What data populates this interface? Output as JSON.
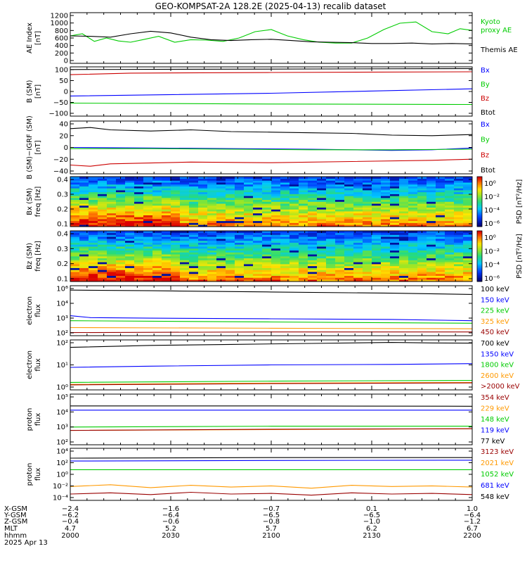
{
  "title": "GEO-KOMPSAT-2A 128.2E (2025-04-13) recalib dataset",
  "colors": {
    "black": "#000000",
    "blue": "#0000ff",
    "green": "#00cc00",
    "red": "#cc0000",
    "orange": "#ff9900",
    "darkred": "#990000",
    "navy": "#0000aa"
  },
  "chart_data": [
    {
      "type": "line",
      "panel": "ae",
      "ylabel": [
        "AE Index",
        "[nT]"
      ],
      "yticks": [
        "1200",
        "1000",
        "800",
        "600",
        "400",
        "200",
        "0"
      ],
      "ylim": [
        0,
        1200
      ],
      "legend": [
        {
          "name": "Kyoto",
          "color": "green"
        },
        {
          "name": "proxy AE",
          "color": "green"
        },
        {
          "name": "Themis AE",
          "color": "black"
        }
      ],
      "series": [
        {
          "name": "Kyoto proxy AE",
          "color": "green",
          "x": [
            0,
            0.03,
            0.06,
            0.09,
            0.12,
            0.15,
            0.18,
            0.22,
            0.26,
            0.3,
            0.34,
            0.38,
            0.42,
            0.46,
            0.5,
            0.54,
            0.58,
            0.62,
            0.66,
            0.7,
            0.74,
            0.78,
            0.82,
            0.86,
            0.9,
            0.94,
            0.97,
            1.0
          ],
          "values": [
            650,
            700,
            520,
            600,
            530,
            500,
            560,
            640,
            500,
            560,
            550,
            520,
            600,
            750,
            800,
            650,
            560,
            500,
            480,
            480,
            600,
            800,
            950,
            980,
            750,
            700,
            820,
            780
          ]
        },
        {
          "name": "Themis AE",
          "color": "black",
          "x": [
            0,
            0.05,
            0.1,
            0.15,
            0.2,
            0.25,
            0.3,
            0.35,
            0.4,
            0.45,
            0.5,
            0.55,
            0.6,
            0.65,
            0.7,
            0.75,
            0.8,
            0.85,
            0.9,
            0.95,
            1.0
          ],
          "values": [
            650,
            640,
            620,
            700,
            760,
            720,
            620,
            560,
            540,
            560,
            570,
            540,
            510,
            500,
            490,
            470,
            470,
            480,
            460,
            470,
            460
          ]
        }
      ]
    },
    {
      "type": "line",
      "panel": "bsm",
      "ylabel": [
        "B (SM)",
        "[nT]"
      ],
      "yticks": [
        "100",
        "50",
        "0",
        "−50",
        "−100"
      ],
      "ylim": [
        -110,
        110
      ],
      "legend": [
        {
          "name": "Bx",
          "color": "blue"
        },
        {
          "name": "By",
          "color": "green"
        },
        {
          "name": "Bz",
          "color": "red"
        },
        {
          "name": "Btot",
          "color": "black"
        }
      ],
      "series": [
        {
          "name": "Btot",
          "color": "black",
          "x": [
            0,
            1
          ],
          "values": [
            98,
            102
          ]
        },
        {
          "name": "Bz",
          "color": "red",
          "x": [
            0,
            0.15,
            0.5,
            1
          ],
          "values": [
            75,
            82,
            85,
            88
          ]
        },
        {
          "name": "Bx",
          "color": "blue",
          "x": [
            0,
            0.5,
            1
          ],
          "values": [
            -20,
            -8,
            12
          ]
        },
        {
          "name": "By",
          "color": "green",
          "x": [
            0,
            0.5,
            1
          ],
          "values": [
            -52,
            -56,
            -58
          ]
        }
      ]
    },
    {
      "type": "line",
      "panel": "bigrf",
      "ylabel": [
        "B (SM)−IGRF (SM)",
        "[nT]"
      ],
      "yticks": [
        "40",
        "20",
        "0",
        "−20",
        "−40"
      ],
      "ylim": [
        -45,
        45
      ],
      "legend": [
        {
          "name": "Bx",
          "color": "blue"
        },
        {
          "name": "By",
          "color": "green"
        },
        {
          "name": "Bz",
          "color": "red"
        },
        {
          "name": "Btot",
          "color": "black"
        }
      ],
      "series": [
        {
          "name": "Btot",
          "color": "black",
          "x": [
            0,
            0.05,
            0.1,
            0.2,
            0.3,
            0.4,
            0.5,
            0.6,
            0.7,
            0.8,
            0.9,
            1.0
          ],
          "values": [
            32,
            34,
            30,
            28,
            30,
            27,
            26,
            25,
            24,
            21,
            20,
            22
          ]
        },
        {
          "name": "Bx",
          "color": "blue",
          "x": [
            0,
            0.2,
            0.4,
            0.6,
            0.8,
            0.9,
            1.0
          ],
          "values": [
            0,
            -1,
            -2,
            -3,
            -5,
            -4,
            -1
          ]
        },
        {
          "name": "By",
          "color": "green",
          "x": [
            0,
            0.2,
            0.4,
            0.6,
            0.8,
            1.0
          ],
          "values": [
            -2,
            -2,
            -3,
            -4,
            -4,
            -3
          ]
        },
        {
          "name": "Bz",
          "color": "red",
          "x": [
            0,
            0.05,
            0.1,
            0.3,
            0.5,
            0.7,
            0.9,
            1.0
          ],
          "values": [
            -30,
            -32,
            -28,
            -25,
            -26,
            -24,
            -22,
            -20
          ]
        }
      ]
    },
    {
      "type": "heatmap",
      "panel": "spec_bx",
      "ylabel": [
        "Bx (SM)",
        "freq [Hz]"
      ],
      "yticks": [
        "0.4",
        "0.3",
        "0.2",
        "0.1"
      ],
      "ylim": [
        0,
        0.5
      ],
      "colorbar": {
        "label": "PSD [nT²/Hz]",
        "ticks": [
          "10⁰",
          "10⁻²",
          "10⁻⁴",
          "10⁻⁶"
        ]
      }
    },
    {
      "type": "heatmap",
      "panel": "spec_bz",
      "ylabel": [
        "Bz (SM)",
        "freq [Hz]"
      ],
      "yticks": [
        "0.4",
        "0.3",
        "0.2",
        "0.1"
      ],
      "ylim": [
        0,
        0.5
      ],
      "colorbar": {
        "label": "PSD [nT²/Hz]",
        "ticks": [
          "10⁰",
          "10⁻²",
          "10⁻⁴",
          "10⁻⁶"
        ]
      }
    },
    {
      "type": "line",
      "panel": "eflux1",
      "log": true,
      "ylabel": [
        "electron",
        "flux"
      ],
      "yticks": [
        "10⁶",
        "10⁴",
        "10³",
        "10²"
      ],
      "ylim": [
        2,
        6
      ],
      "legend": [
        {
          "name": "100 keV",
          "color": "black"
        },
        {
          "name": "150 keV",
          "color": "blue"
        },
        {
          "name": "225 keV",
          "color": "green"
        },
        {
          "name": "325 keV",
          "color": "orange"
        },
        {
          "name": "450 keV",
          "color": "darkred"
        }
      ],
      "series": [
        {
          "name": "100 keV",
          "color": "black",
          "x": [
            0,
            0.2,
            0.5,
            0.8,
            1
          ],
          "values": [
            5.65,
            5.6,
            5.5,
            5.4,
            5.3
          ]
        },
        {
          "name": "150 keV",
          "color": "blue",
          "x": [
            0,
            0.05,
            0.2,
            0.5,
            0.8,
            1
          ],
          "values": [
            3.6,
            3.45,
            3.4,
            3.35,
            3.3,
            3.2
          ]
        },
        {
          "name": "225 keV",
          "color": "green",
          "x": [
            0,
            0.5,
            1
          ],
          "values": [
            3.2,
            3.1,
            3.0
          ]
        },
        {
          "name": "325 keV",
          "color": "orange",
          "x": [
            0,
            0.5,
            1
          ],
          "values": [
            2.65,
            2.6,
            2.55
          ]
        },
        {
          "name": "450 keV",
          "color": "darkred",
          "x": [
            0,
            0.5,
            1
          ],
          "values": [
            2.25,
            2.3,
            2.3
          ]
        }
      ]
    },
    {
      "type": "line",
      "panel": "eflux2",
      "log": true,
      "ylabel": [
        "electron",
        "flux"
      ],
      "yticks": [
        "10²",
        "10¹",
        "10⁰"
      ],
      "ylim": [
        0,
        2
      ],
      "legend": [
        {
          "name": "700 keV",
          "color": "black"
        },
        {
          "name": "1350 keV",
          "color": "blue"
        },
        {
          "name": "1800 keV",
          "color": "green"
        },
        {
          "name": "2600 keV",
          "color": "orange"
        },
        {
          "name": ">2000 keV",
          "color": "darkred"
        }
      ],
      "series": [
        {
          "name": "700 keV",
          "color": "black",
          "x": [
            0,
            0.2,
            0.4,
            0.6,
            0.8,
            0.9,
            1
          ],
          "values": [
            1.7,
            1.78,
            1.82,
            1.86,
            1.9,
            1.88,
            1.87
          ]
        },
        {
          "name": "1350 keV",
          "color": "blue",
          "x": [
            0,
            0.2,
            0.5,
            0.8,
            1
          ],
          "values": [
            0.9,
            0.95,
            1.0,
            1.02,
            1.05
          ]
        },
        {
          "name": "1800 keV",
          "color": "green",
          "x": [
            0,
            0.5,
            1
          ],
          "values": [
            0.3,
            0.35,
            0.38
          ]
        },
        {
          "name": "2600 keV",
          "color": "orange",
          "x": [
            0,
            0.5,
            1
          ],
          "values": [
            0.22,
            0.27,
            0.3
          ]
        },
        {
          "name": ">2000 keV",
          "color": "darkred",
          "x": [
            0,
            0.5,
            1
          ],
          "values": [
            0.2,
            0.25,
            0.28
          ]
        }
      ]
    },
    {
      "type": "line",
      "panel": "pflux1",
      "log": true,
      "ylabel": [
        "proton",
        "flux"
      ],
      "yticks": [
        "10⁵",
        "10⁴",
        "10³",
        "10²"
      ],
      "ylim": [
        2,
        5
      ],
      "legend": [
        {
          "name": "354 keV",
          "color": "darkred"
        },
        {
          "name": "229 keV",
          "color": "orange"
        },
        {
          "name": "148 keV",
          "color": "green"
        },
        {
          "name": "119 keV",
          "color": "blue"
        },
        {
          "name": "77 keV",
          "color": "black"
        }
      ],
      "series": [
        {
          "name": "77 keV",
          "color": "black",
          "x": [
            0,
            0.5,
            1
          ],
          "values": [
            4.3,
            4.3,
            4.28
          ]
        },
        {
          "name": "119 keV",
          "color": "blue",
          "x": [
            0,
            0.5,
            1
          ],
          "values": [
            4.05,
            4.05,
            4.05
          ]
        },
        {
          "name": "148 keV",
          "color": "green",
          "x": [
            0,
            0.5,
            1
          ],
          "values": [
            3.05,
            3.1,
            3.1
          ]
        },
        {
          "name": "229 keV",
          "color": "orange",
          "x": [
            0,
            0.5,
            1
          ],
          "values": [
            2.85,
            2.9,
            2.95
          ]
        },
        {
          "name": "354 keV",
          "color": "darkred",
          "x": [
            0,
            0.5,
            1
          ],
          "values": [
            2.85,
            2.92,
            2.95
          ]
        }
      ]
    },
    {
      "type": "line",
      "panel": "pflux2",
      "log": true,
      "ylabel": [
        "proton",
        "flux"
      ],
      "yticks": [
        "10⁴",
        "10²",
        "10⁰",
        "10⁻²",
        "10⁻⁴"
      ],
      "ylim": [
        -5,
        4
      ],
      "legend": [
        {
          "name": "3123 keV",
          "color": "darkred"
        },
        {
          "name": "2021 keV",
          "color": "orange"
        },
        {
          "name": "1052 keV",
          "color": "green"
        },
        {
          "name": "681 keV",
          "color": "blue"
        },
        {
          "name": "548 keV",
          "color": "black"
        }
      ],
      "series": [
        {
          "name": "548 keV",
          "color": "black",
          "x": [
            0,
            0.5,
            1
          ],
          "values": [
            2.3,
            2.4,
            2.4
          ]
        },
        {
          "name": "681 keV",
          "color": "blue",
          "x": [
            0,
            0.5,
            1
          ],
          "values": [
            1.8,
            1.9,
            1.95
          ]
        },
        {
          "name": "1052 keV",
          "color": "green",
          "x": [
            0,
            0.5,
            1
          ],
          "values": [
            0.3,
            0.3,
            0.3
          ]
        },
        {
          "name": "2021 keV",
          "color": "orange",
          "x": [
            0,
            0.1,
            0.2,
            0.3,
            0.4,
            0.5,
            0.6,
            0.7,
            0.8,
            0.9,
            1
          ],
          "values": [
            -2.6,
            -2.3,
            -2.8,
            -2.4,
            -2.7,
            -2.5,
            -2.9,
            -2.4,
            -2.6,
            -2.5,
            -2.7
          ]
        },
        {
          "name": "3123 keV",
          "color": "darkred",
          "x": [
            0,
            0.1,
            0.2,
            0.3,
            0.4,
            0.5,
            0.6,
            0.7,
            0.8,
            0.9,
            1
          ],
          "values": [
            -3.9,
            -3.7,
            -4.0,
            -3.6,
            -3.9,
            -3.8,
            -4.1,
            -3.7,
            -3.9,
            -3.8,
            -4.0
          ]
        }
      ]
    }
  ],
  "ephemeris": {
    "labels": [
      "X-GSM",
      "Y-GSM",
      "Z-GSM",
      "MLT",
      "hhmm",
      "2025 Apr 13"
    ],
    "columns": [
      {
        "x": "−2.4",
        "y": "−6.2",
        "z": "−0.4",
        "mlt": "4.7",
        "hhmm": "2000"
      },
      {
        "x": "−1.6",
        "y": "−6.4",
        "z": "−0.6",
        "mlt": "5.2",
        "hhmm": "2030"
      },
      {
        "x": "−0.7",
        "y": "−6.5",
        "z": "−0.8",
        "mlt": "5.7",
        "hhmm": "2100"
      },
      {
        "x": "0.1",
        "y": "−6.5",
        "z": "−1.0",
        "mlt": "6.2",
        "hhmm": "2130"
      },
      {
        "x": "1.0",
        "y": "−6.4",
        "z": "−1.2",
        "mlt": "6.7",
        "hhmm": "2200"
      }
    ]
  }
}
